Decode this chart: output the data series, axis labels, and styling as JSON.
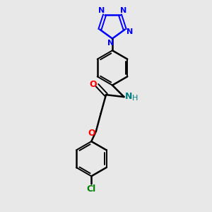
{
  "bg_color": "#e8e8e8",
  "bond_color": "#000000",
  "n_color": "#0000ff",
  "o_color": "#ff0000",
  "cl_color": "#008000",
  "nh_color": "#008080",
  "figsize": [
    3.0,
    3.0
  ],
  "dpi": 100,
  "xlim": [
    0,
    10
  ],
  "ylim": [
    0,
    10
  ]
}
